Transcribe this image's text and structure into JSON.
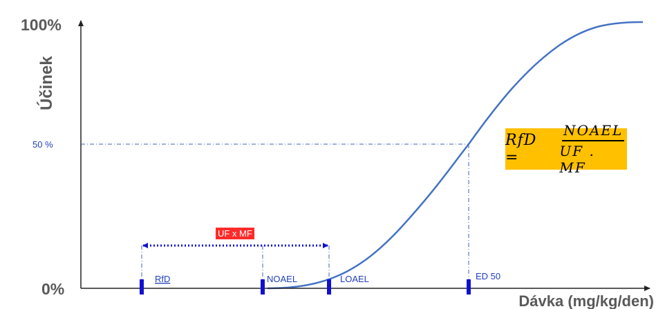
{
  "axes": {
    "y_title": "Účinek",
    "x_title": "Dávka (mg/kg/den)",
    "y_tick_top": "100%",
    "y_tick_bottom": "0%",
    "y_tick_mid": "50 %"
  },
  "markers": {
    "rfd": "RfD",
    "noael": "NOAEL",
    "loael": "LOAEL",
    "ed50": "ED 50"
  },
  "range_label": "UF x MF",
  "formula": {
    "lhs": "RfD =",
    "numerator": "NOAEL",
    "denominator": "UF . MF"
  },
  "colors": {
    "curve": "#4472c4",
    "marker": "#1010d0",
    "guide": "#3f5fbf",
    "formula_bg": "#ffc000",
    "range_tag_bg": "#ff2a2a",
    "axis": "#222222"
  }
}
